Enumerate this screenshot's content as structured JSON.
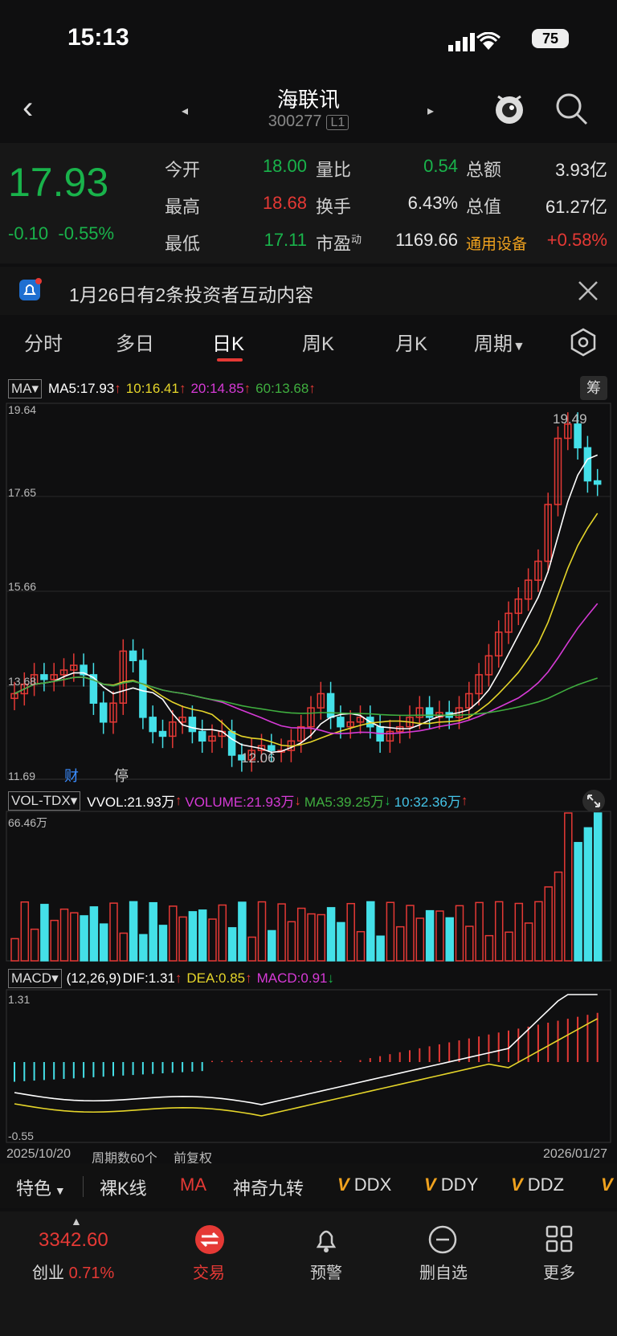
{
  "status": {
    "time": "15:13",
    "battery": "75"
  },
  "header": {
    "title": "海联讯",
    "code": "300277",
    "code_badge": "L1"
  },
  "quote": {
    "price": "17.93",
    "change": "-0.10",
    "change_pct": "-0.55%",
    "rows": [
      [
        {
          "label": "今开",
          "value": "18.00",
          "color": "#19b34b"
        },
        {
          "label": "量比",
          "value": "0.54",
          "color": "#19b34b"
        },
        {
          "label": "总额",
          "value": "3.93亿",
          "color": "#e6e6e6"
        }
      ],
      [
        {
          "label": "最高",
          "value": "18.68",
          "color": "#e53935"
        },
        {
          "label": "换手",
          "value": "6.43%",
          "color": "#e6e6e6"
        },
        {
          "label": "总值",
          "value": "61.27亿",
          "color": "#e6e6e6"
        }
      ],
      [
        {
          "label": "最低",
          "value": "17.11",
          "color": "#19b34b"
        },
        {
          "label": "市盈",
          "label_sup": "动",
          "value": "1169.66",
          "color": "#e6e6e6"
        },
        {
          "label": "通用设备",
          "value": "+0.58%",
          "color": "#e53935"
        }
      ]
    ]
  },
  "notice": {
    "text": "1月26日有2条投资者互动内容"
  },
  "tabs": [
    "分时",
    "多日",
    "日K",
    "周K",
    "月K",
    "周期"
  ],
  "ma_legend": {
    "select": "MA",
    "ma5": "MA5:17.93",
    "ma10": "10:16.41",
    "ma20": "20:14.85",
    "ma60": "60:13.68",
    "btn": "筹"
  },
  "kline": {
    "y_labels": [
      "19.64",
      "17.65",
      "15.66",
      "13.68",
      "11.69"
    ],
    "high_label": "19.49",
    "low_label": "12.06",
    "marks": [
      "财",
      "停"
    ]
  },
  "vol_legend": {
    "select": "VOL-TDX",
    "vvol": "VVOL:21.93万",
    "volume": "VOLUME:21.93万",
    "ma5": "MA5:39.25万",
    "ma10": "10:32.36万",
    "max": "66.46万"
  },
  "macd_legend": {
    "select": "MACD",
    "params": "(12,26,9)",
    "dif": "DIF:1.31",
    "dea": "DEA:0.85",
    "macd": "MACD:0.91",
    "top": "1.31",
    "bottom": "-0.55"
  },
  "footer_axis": {
    "start": "2025/10/20",
    "period": "周期数60个",
    "adj": "前复权",
    "end": "2026/01/27"
  },
  "toolbar": [
    "特色",
    "裸K线",
    "MA",
    "神奇九转",
    "DDX",
    "DDY",
    "DDZ"
  ],
  "bottom_nav": {
    "index_value": "3342.60",
    "index_name": "创业",
    "index_pct": "0.71%",
    "items": [
      "交易",
      "预警",
      "删自选",
      "更多"
    ]
  },
  "colors": {
    "up": "#e53935",
    "down": "#19b34b",
    "cyan": "#44e0e8"
  }
}
